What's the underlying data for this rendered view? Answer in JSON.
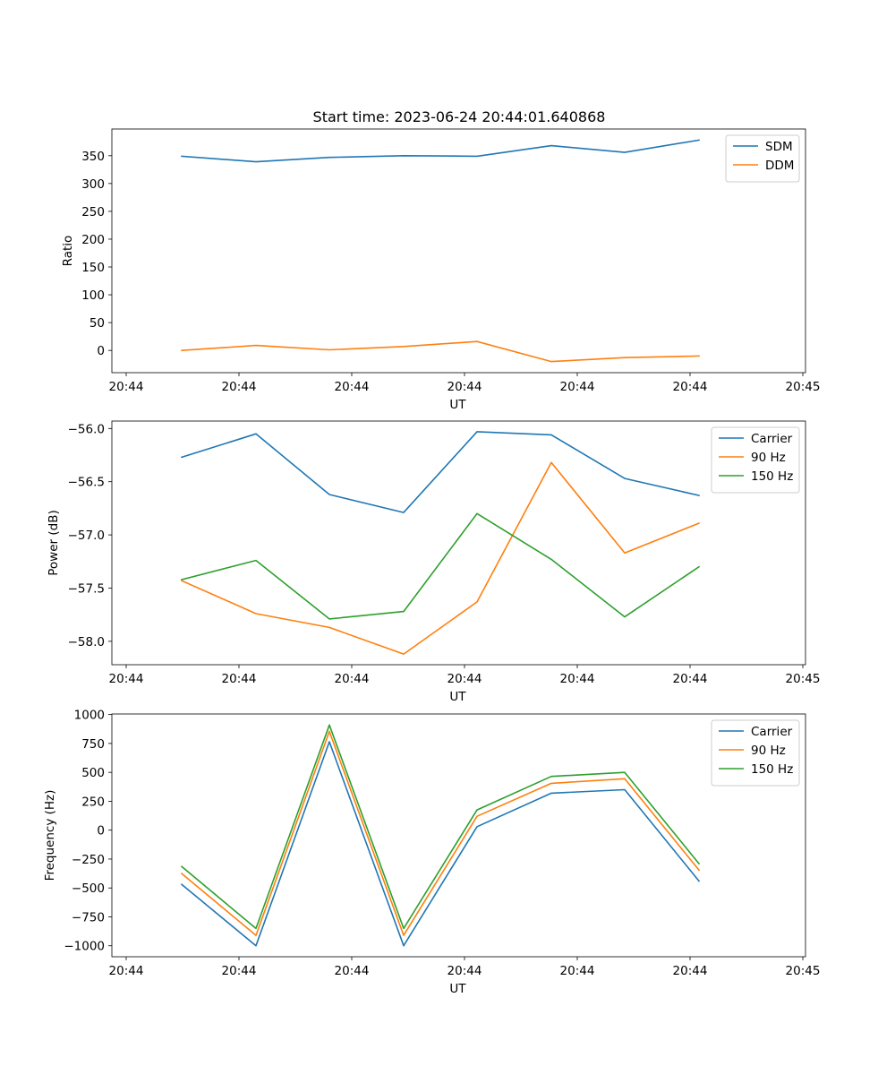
{
  "figure_title": "Start time: 2023-06-24 20:44:01.640868",
  "colors": {
    "blue": "#1f77b4",
    "orange": "#ff7f0e",
    "green": "#2ca02c"
  },
  "chart_data": [
    {
      "type": "line",
      "title": "Start time: 2023-06-24 20:44:01.640868",
      "xlabel": "UT",
      "ylabel": "Ratio",
      "x_tick_labels": [
        "20:44",
        "20:44",
        "20:44",
        "20:44",
        "20:44",
        "20:44",
        "20:45"
      ],
      "ylim": [
        -40,
        398
      ],
      "y_ticks": [
        0,
        50,
        100,
        150,
        200,
        250,
        300,
        350
      ],
      "legend_position": "top-right",
      "grid": false,
      "series": [
        {
          "name": "SDM",
          "color": "#1f77b4",
          "values": [
            349,
            339,
            347,
            350,
            349,
            368,
            356,
            378
          ]
        },
        {
          "name": "DDM",
          "color": "#ff7f0e",
          "values": [
            0,
            9,
            1,
            7,
            16,
            -20,
            -13,
            -10
          ]
        }
      ]
    },
    {
      "type": "line",
      "title": "",
      "xlabel": "UT",
      "ylabel": "Power (dB)",
      "x_tick_labels": [
        "20:44",
        "20:44",
        "20:44",
        "20:44",
        "20:44",
        "20:44",
        "20:45"
      ],
      "ylim": [
        -58.22,
        -55.93
      ],
      "y_ticks": [
        -58.0,
        -57.5,
        -57.0,
        -56.5,
        -56.0
      ],
      "y_tick_labels": [
        "−58.0",
        "−57.5",
        "−57.0",
        "−56.5",
        "−56.0"
      ],
      "legend_position": "top-right",
      "grid": false,
      "series": [
        {
          "name": "Carrier",
          "color": "#1f77b4",
          "values": [
            -56.27,
            -56.05,
            -56.62,
            -56.79,
            -56.03,
            -56.06,
            -56.47,
            -56.63
          ]
        },
        {
          "name": "90 Hz",
          "color": "#ff7f0e",
          "values": [
            -57.43,
            -57.74,
            -57.87,
            -58.12,
            -57.63,
            -56.32,
            -57.17,
            -56.89
          ]
        },
        {
          "name": "150 Hz",
          "color": "#2ca02c",
          "values": [
            -57.42,
            -57.24,
            -57.79,
            -57.72,
            -56.8,
            -57.23,
            -57.77,
            -57.3
          ]
        }
      ]
    },
    {
      "type": "line",
      "title": "",
      "xlabel": "UT",
      "ylabel": "Frequency (Hz)",
      "x_tick_labels": [
        "20:44",
        "20:44",
        "20:44",
        "20:44",
        "20:44",
        "20:44",
        "20:45"
      ],
      "ylim": [
        -1095,
        1005
      ],
      "y_ticks": [
        -1000,
        -750,
        -500,
        -250,
        0,
        250,
        500,
        750,
        1000
      ],
      "y_tick_labels": [
        "−1000",
        "−750",
        "−500",
        "−250",
        "0",
        "250",
        "500",
        "750",
        "1000"
      ],
      "legend_position": "top-right",
      "grid": false,
      "series": [
        {
          "name": "Carrier",
          "color": "#1f77b4",
          "values": [
            -470,
            -1000,
            765,
            -1000,
            30,
            320,
            350,
            -440
          ]
        },
        {
          "name": "90 Hz",
          "color": "#ff7f0e",
          "values": [
            -375,
            -910,
            855,
            -910,
            120,
            405,
            445,
            -345
          ]
        },
        {
          "name": "150 Hz",
          "color": "#2ca02c",
          "values": [
            -315,
            -850,
            910,
            -850,
            175,
            465,
            500,
            -290
          ]
        }
      ]
    }
  ]
}
